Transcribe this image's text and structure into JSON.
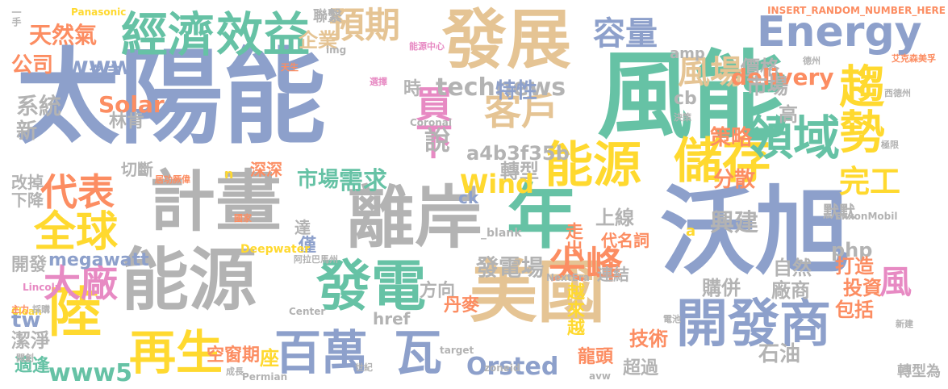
{
  "palette": {
    "blue": "#8da0cb",
    "green": "#66c2a5",
    "tan": "#e5c494",
    "gray": "#b3b3b3",
    "orange": "#fc8d62",
    "yellow": "#ffd92f",
    "lime": "#a6d854",
    "pink": "#e78ac3"
  },
  "words": [
    {
      "id": "taiyangneng",
      "text": "太陽能",
      "color": "#8da0cb"
    },
    {
      "id": "fengneng",
      "text": "風能",
      "color": "#66c2a5"
    },
    {
      "id": "wosu",
      "text": "沃旭",
      "color": "#8da0cb"
    },
    {
      "id": "fazhan",
      "text": "發展",
      "color": "#e5c494"
    },
    {
      "id": "jihua",
      "text": "計畫",
      "color": "#b3b3b3"
    },
    {
      "id": "lian",
      "text": "離岸",
      "color": "#b3b3b3"
    },
    {
      "id": "nengyuan1",
      "text": "能源",
      "color": "#b3b3b3"
    },
    {
      "id": "nian",
      "text": "年",
      "color": "#66c2a5"
    },
    {
      "id": "meiguo",
      "text": "美國",
      "color": "#e5c494"
    },
    {
      "id": "kaifashang",
      "text": "開發商",
      "color": "#8da0cb"
    },
    {
      "id": "fadian",
      "text": "發電",
      "color": "#66c2a5"
    },
    {
      "id": "nengyuan2",
      "text": "能源",
      "color": "#ffd92f"
    },
    {
      "id": "chucun",
      "text": "儲存",
      "color": "#ffd92f"
    },
    {
      "id": "jingji",
      "text": "經濟",
      "color": "#66c2a5"
    },
    {
      "id": "xiaoyi",
      "text": "效益",
      "color": "#66c2a5"
    },
    {
      "id": "energy",
      "text": "Energy",
      "color": "#8da0cb"
    },
    {
      "id": "qushi",
      "text": "趨勢",
      "color": "#ffd92f"
    },
    {
      "id": "lingyu",
      "text": "領域",
      "color": "#66c2a5"
    },
    {
      "id": "baiwan",
      "text": "百萬",
      "color": "#8da0cb"
    },
    {
      "id": "wa",
      "text": "瓦",
      "color": "#8da0cb"
    },
    {
      "id": "zaisheng",
      "text": "再生",
      "color": "#ffd92f"
    },
    {
      "id": "lu",
      "text": "陸",
      "color": "#ffd92f"
    },
    {
      "id": "quanqiu",
      "text": "全球",
      "color": "#ffd92f"
    },
    {
      "id": "dachang",
      "text": "大廠",
      "color": "#e78ac3"
    },
    {
      "id": "daibiao",
      "text": "代表",
      "color": "#fc8d62"
    },
    {
      "id": "rongliang",
      "text": "容量",
      "color": "#8da0cb"
    },
    {
      "id": "fengchang",
      "text": "風場",
      "color": "#e5c494"
    },
    {
      "id": "yuqi",
      "text": "預期",
      "color": "#e5c494"
    },
    {
      "id": "kehu",
      "text": "客戶",
      "color": "#e5c494"
    },
    {
      "id": "maixia",
      "text": "買下",
      "color": "#e78ac3"
    },
    {
      "id": "jianfeng",
      "text": "尖峰",
      "color": "#fc8d62"
    },
    {
      "id": "feng",
      "text": "風",
      "color": "#e78ac3"
    },
    {
      "id": "tianranqi",
      "text": "天然氣",
      "color": "#fc8d62"
    },
    {
      "id": "gongsi",
      "text": "公司",
      "color": "#fc8d62"
    },
    {
      "id": "qiye",
      "text": "企業",
      "color": "#e5c494"
    },
    {
      "id": "lianxi",
      "text": "聯繫",
      "color": "#b3b3b3"
    },
    {
      "id": "jiage",
      "text": "價格",
      "color": "#b3b3b3"
    },
    {
      "id": "delivery",
      "text": "delivery",
      "color": "#fc8d62"
    },
    {
      "id": "www",
      "text": "www",
      "color": "#8da0cb"
    },
    {
      "id": "mingzi",
      "text": "名字",
      "color": "#8da0cb"
    },
    {
      "id": "shi",
      "text": "時",
      "color": "#b3b3b3"
    },
    {
      "id": "technews",
      "text": "technews",
      "color": "#b3b3b3"
    },
    {
      "id": "texing",
      "text": "特性",
      "color": "#8da0cb"
    },
    {
      "id": "shichang1",
      "text": "市場",
      "color": "#b3b3b3"
    },
    {
      "id": "solar",
      "text": "Solar",
      "color": "#fc8d62"
    },
    {
      "id": "linken",
      "text": "林肯",
      "color": "#b3b3b3"
    },
    {
      "id": "xitong",
      "text": "系統",
      "color": "#b3b3b3"
    },
    {
      "id": "xin",
      "text": "新",
      "color": "#b3b3b3"
    },
    {
      "id": "shuo",
      "text": "說",
      "color": "#b3b3b3"
    },
    {
      "id": "cb",
      "text": "cb",
      "color": "#b3b3b3"
    },
    {
      "id": "gao",
      "text": "高",
      "color": "#b3b3b3"
    },
    {
      "id": "celue",
      "text": "策略",
      "color": "#fc8d62"
    },
    {
      "id": "a4b3f35b",
      "text": "a4b3f35b",
      "color": "#b3b3b3"
    },
    {
      "id": "zhuanxing",
      "text": "轉型",
      "color": "#b3b3b3"
    },
    {
      "id": "shichang2",
      "text": "市場",
      "color": "#66c2a5"
    },
    {
      "id": "xuqiu",
      "text": "需求",
      "color": "#66c2a5"
    },
    {
      "id": "wind",
      "text": "Wind",
      "color": "#ffd92f"
    },
    {
      "id": "fensan",
      "text": "分散",
      "color": "#fc8d62"
    },
    {
      "id": "wangong",
      "text": "完工",
      "color": "#ffd92f"
    },
    {
      "id": "qieduan",
      "text": "切斷",
      "color": "#b3b3b3"
    },
    {
      "id": "gaidiao",
      "text": "改掉",
      "color": "#b3b3b3"
    },
    {
      "id": "xiajiang",
      "text": "下降",
      "color": "#b3b3b3"
    },
    {
      "id": "shenshen",
      "text": "深深",
      "color": "#fc8d62"
    },
    {
      "id": "shangxian",
      "text": "上線",
      "color": "#b3b3b3"
    },
    {
      "id": "xingjian",
      "text": "興建",
      "color": "#b3b3b3"
    },
    {
      "id": "mofmof",
      "text": "默默",
      "color": "#b3b3b3"
    },
    {
      "id": "php",
      "text": "php",
      "color": "#b3b3b3"
    },
    {
      "id": "da",
      "text": "達",
      "color": "#b3b3b3"
    },
    {
      "id": "jin",
      "text": "僅",
      "color": "#8da0cb"
    },
    {
      "id": "zouchu",
      "text": "走出",
      "color": "#fc8d62"
    },
    {
      "id": "fadianchang",
      "text": "發電場",
      "color": "#b3b3b3"
    },
    {
      "id": "ziran",
      "text": "自然",
      "color": "#b3b3b3"
    },
    {
      "id": "dazao",
      "text": "打造",
      "color": "#fc8d62"
    },
    {
      "id": "kaifa",
      "text": "開發",
      "color": "#b3b3b3"
    },
    {
      "id": "megawatt",
      "text": "megawatt",
      "color": "#8da0cb"
    },
    {
      "id": "daimingci",
      "text": "代名詞",
      "color": "#fc8d62"
    },
    {
      "id": "touzi",
      "text": "投資",
      "color": "#fc8d62"
    },
    {
      "id": "fangxiang",
      "text": "方向",
      "color": "#b3b3b3"
    },
    {
      "id": "lianjie",
      "text": "連結",
      "color": "#b3b3b3"
    },
    {
      "id": "goubing",
      "text": "購併",
      "color": "#b3b3b3"
    },
    {
      "id": "changshang",
      "text": "廠商",
      "color": "#b3b3b3"
    },
    {
      "id": "baokuo",
      "text": "包括",
      "color": "#fc8d62"
    },
    {
      "id": "tw",
      "text": "tw",
      "color": "#8da0cb"
    },
    {
      "id": "jiejing",
      "text": "潔淨",
      "color": "#b3b3b3"
    },
    {
      "id": "zuo",
      "text": "座",
      "color": "#ffd92f"
    },
    {
      "id": "www5",
      "text": "www5",
      "color": "#66c2a5"
    },
    {
      "id": "yuelaiyue",
      "text": "越來越",
      "color": "#ffd92f"
    },
    {
      "id": "jishu",
      "text": "技術",
      "color": "#fc8d62"
    },
    {
      "id": "shiyou",
      "text": "石油",
      "color": "#b3b3b3"
    },
    {
      "id": "kongchuangqi",
      "text": "空窗期",
      "color": "#fc8d62"
    },
    {
      "id": "orsted",
      "text": "Orsted",
      "color": "#8da0cb"
    },
    {
      "id": "longtou",
      "text": "龍頭",
      "color": "#fc8d62"
    },
    {
      "id": "chaoguo",
      "text": "超過",
      "color": "#b3b3b3"
    },
    {
      "id": "danmai",
      "text": "丹麥",
      "color": "#fc8d62"
    },
    {
      "id": "href",
      "text": "href",
      "color": "#b3b3b3"
    },
    {
      "id": "zhuanxingwei",
      "text": "轉型為",
      "color": "#b3b3b3"
    },
    {
      "id": "shiying",
      "text": "適逢",
      "color": "#66c2a5"
    },
    {
      "id": "amp",
      "text": "amp",
      "color": "#b3b3b3"
    },
    {
      "id": "panasonic",
      "text": "Panasonic",
      "color": "#ffd92f"
    },
    {
      "id": "insert",
      "text": "INSERT_RANDOM_NUMBER_HERE",
      "color": "#fc8d62"
    },
    {
      "id": "img",
      "text": "img",
      "color": "#b3b3b3"
    },
    {
      "id": "coronal",
      "text": "Coronal",
      "color": "#b3b3b3"
    },
    {
      "id": "exxon",
      "text": "ExxonMobil",
      "color": "#b3b3b3"
    },
    {
      "id": "ck",
      "text": "ck",
      "color": "#8da0cb"
    },
    {
      "id": "n",
      "text": "n",
      "color": "#ffd92f"
    },
    {
      "id": "a",
      "text": "a",
      "color": "#ffd92f"
    },
    {
      "id": "blank",
      "text": "_blank",
      "color": "#b3b3b3"
    },
    {
      "id": "deepwater",
      "text": "Deepwater",
      "color": "#ffd92f"
    },
    {
      "id": "nextera",
      "text": "NextEra",
      "color": "#b3b3b3"
    },
    {
      "id": "lincoln",
      "text": "Lincoln",
      "color": "#e78ac3"
    },
    {
      "id": "clean",
      "text": "Clean",
      "color": "#ffd92f"
    },
    {
      "id": "center",
      "text": "Center",
      "color": "#b3b3b3"
    },
    {
      "id": "target",
      "text": "target",
      "color": "#b3b3b3"
    },
    {
      "id": "zoneid",
      "text": "zoneid",
      "color": "#b3b3b3"
    },
    {
      "id": "permian",
      "text": "Permian",
      "color": "#b3b3b3"
    },
    {
      "id": "avw",
      "text": "avw",
      "color": "#b3b3b3"
    },
    {
      "id": "yijiu",
      "text": "一手",
      "color": "#b3b3b3"
    },
    {
      "id": "nengyuanzhongxin",
      "text": "能源中心",
      "color": "#e78ac3"
    },
    {
      "id": "aike",
      "text": "艾克森美孚",
      "color": "#fc8d62"
    },
    {
      "id": "xindezhou",
      "text": "西德州",
      "color": "#b3b3b3"
    },
    {
      "id": "jushi",
      "text": "居功厥偉",
      "color": "#fc8d62"
    },
    {
      "id": "alabo",
      "text": "阿拉巴馬州",
      "color": "#b3b3b3"
    },
    {
      "id": "guojia",
      "text": "國家",
      "color": "#fc8d62"
    },
    {
      "id": "zhuli",
      "text": "主力",
      "color": "#fc8d62"
    },
    {
      "id": "caigou",
      "text": "採購",
      "color": "#b3b3b3"
    },
    {
      "id": "xinjian",
      "text": "新建",
      "color": "#b3b3b3"
    },
    {
      "id": "chengzhang",
      "text": "成長",
      "color": "#b3b3b3"
    },
    {
      "id": "shijie",
      "text": "世紀",
      "color": "#b3b3b3"
    },
    {
      "id": "kaichuang",
      "text": "開創",
      "color": "#b3b3b3"
    },
    {
      "id": "dianchi",
      "text": "電池",
      "color": "#b3b3b3"
    },
    {
      "id": "tedalaong",
      "text": "德州",
      "color": "#b3b3b3"
    },
    {
      "id": "tiansheng",
      "text": "天生",
      "color": "#fc8d62"
    },
    {
      "id": "jixian",
      "text": "極限",
      "color": "#b3b3b3"
    },
    {
      "id": "xuanze",
      "text": "選擇",
      "color": "#e78ac3"
    },
    {
      "id": "juece",
      "text": "決策",
      "color": "#b3b3b3"
    }
  ]
}
